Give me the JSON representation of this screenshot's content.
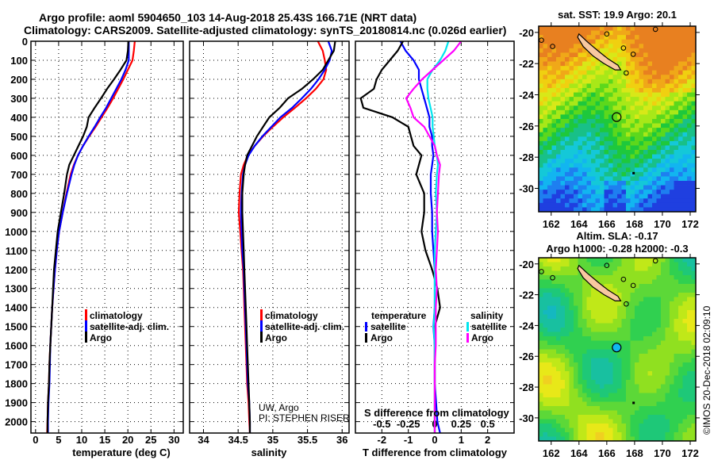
{
  "header": {
    "line1": "Argo profile: aoml 5904650_103 14-Aug-2018 25.43S 166.71E (NRT data)",
    "line2": "Climatology: CARS2009. Satellite-adjusted climatology: synTS_20180814.nc (0.026d earlier)"
  },
  "colors": {
    "climatology": "#ff0000",
    "satellite": "#0000ff",
    "argo": "#000000",
    "s_satellite": "#00e5ee",
    "s_argo": "#ff00ff"
  },
  "chart_data": [
    {
      "type": "line",
      "name": "temperature-profile",
      "xlabel": "temperature (deg C)",
      "ylabel": "",
      "xlim": [
        -1,
        32
      ],
      "ylim": [
        2060,
        0
      ],
      "xticks": [
        0,
        5,
        10,
        15,
        20,
        25,
        30
      ],
      "yticks": [
        0,
        100,
        200,
        300,
        400,
        500,
        600,
        700,
        800,
        900,
        1000,
        1100,
        1200,
        1300,
        1400,
        1500,
        1600,
        1700,
        1800,
        1900,
        2000
      ],
      "grid": true,
      "legend": {
        "position": "center-right",
        "entries": [
          "climatology",
          "satellite-adj. clim.",
          "Argo"
        ]
      },
      "depth": [
        0,
        50,
        100,
        150,
        200,
        250,
        300,
        350,
        400,
        450,
        500,
        550,
        600,
        650,
        700,
        800,
        900,
        1000,
        1100,
        1200,
        1300,
        1400,
        1500,
        1600,
        1700,
        1800,
        1900,
        2000,
        2060
      ],
      "series": [
        {
          "name": "climatology",
          "color_key": "climatology",
          "values": [
            21.5,
            21.3,
            21.0,
            20.0,
            19.0,
            17.9,
            16.8,
            15.6,
            14.3,
            13.0,
            11.6,
            10.3,
            9.2,
            8.3,
            7.6,
            6.7,
            5.9,
            5.1,
            4.6,
            4.2,
            3.9,
            3.6,
            3.4,
            3.2,
            3.0,
            2.9,
            2.7,
            2.6,
            2.5
          ]
        },
        {
          "name": "satellite-adj. clim.",
          "color_key": "satellite",
          "values": [
            20.2,
            20.2,
            20.2,
            19.5,
            18.6,
            17.5,
            16.4,
            15.3,
            14.0,
            12.8,
            11.5,
            10.3,
            9.2,
            8.4,
            7.8,
            6.8,
            5.9,
            5.1,
            4.6,
            4.2,
            3.9,
            3.6,
            3.4,
            3.2,
            3.1,
            3.0,
            2.8,
            2.7,
            2.7
          ]
        },
        {
          "name": "Argo",
          "color_key": "argo",
          "values": [
            20.1,
            20.0,
            19.7,
            18.4,
            17.0,
            15.5,
            14.2,
            12.8,
            11.5,
            11.1,
            10.3,
            9.3,
            8.3,
            7.3,
            6.8,
            6.2,
            5.5,
            4.8,
            4.4,
            4.0,
            3.8,
            3.6,
            3.4,
            3.2,
            3.0,
            2.9,
            2.7,
            2.6,
            2.6
          ]
        }
      ]
    },
    {
      "type": "line",
      "name": "salinity-profile",
      "xlabel": "salinity",
      "ylabel": "",
      "xlim": [
        33.8,
        36.1
      ],
      "ylim": [
        2060,
        0
      ],
      "xticks": [
        34,
        34.5,
        35,
        35.5,
        36
      ],
      "xtick_labels": [
        "34",
        "34.5",
        "35",
        "35.5",
        "36"
      ],
      "grid": true,
      "legend": {
        "position": "center-right",
        "entries": [
          "climatology",
          "satellite-adj. clim.",
          "Argo"
        ]
      },
      "annotation": [
        "UW, Argo",
        "PI: STEPHEN RISER"
      ],
      "depth": [
        0,
        50,
        100,
        150,
        200,
        250,
        300,
        350,
        400,
        450,
        500,
        550,
        600,
        650,
        700,
        800,
        900,
        1000,
        1100,
        1200,
        1300,
        1400,
        1500,
        1600,
        1700,
        1800,
        1900,
        2000,
        2060
      ],
      "series": [
        {
          "name": "climatology",
          "color_key": "climatology",
          "values": [
            35.65,
            35.72,
            35.75,
            35.77,
            35.73,
            35.62,
            35.48,
            35.32,
            35.15,
            35.0,
            34.86,
            34.74,
            34.64,
            34.58,
            34.54,
            34.52,
            34.51,
            34.53,
            34.55,
            34.57,
            34.58,
            34.59,
            34.6,
            34.61,
            34.62,
            34.63,
            34.65,
            34.66,
            34.67
          ]
        },
        {
          "name": "satellite-adj. clim.",
          "color_key": "satellite",
          "values": [
            35.8,
            35.85,
            35.82,
            35.75,
            35.66,
            35.55,
            35.42,
            35.28,
            35.11,
            34.98,
            34.85,
            34.74,
            34.65,
            34.6,
            34.57,
            34.55,
            34.54,
            34.55,
            34.56,
            34.58,
            34.59,
            34.6,
            34.61,
            34.62,
            34.63,
            34.64,
            34.66,
            34.67,
            34.67
          ]
        },
        {
          "name": "Argo",
          "color_key": "argo",
          "values": [
            35.9,
            35.88,
            35.8,
            35.72,
            35.58,
            35.42,
            35.22,
            35.1,
            34.95,
            34.86,
            34.77,
            34.7,
            34.63,
            34.6,
            34.58,
            34.56,
            34.56,
            34.57,
            34.58,
            34.59,
            34.6,
            34.61,
            34.62,
            34.63,
            34.64,
            34.65,
            34.66,
            34.67,
            34.67
          ]
        }
      ]
    },
    {
      "type": "line",
      "name": "difference-profile",
      "xlabel": "T difference from climatology",
      "xlabel2": "S difference from climatology",
      "xlim": [
        -3,
        3
      ],
      "ylim": [
        2060,
        0
      ],
      "xticks": [
        -2,
        -1,
        0,
        1,
        2
      ],
      "xticks2": [
        -0.5,
        -0.25,
        0,
        0.25,
        0.5
      ],
      "xtick2_labels": [
        "-0.5",
        "-0.25",
        "0",
        "0.25",
        "0.5"
      ],
      "grid": true,
      "legend": {
        "position": "bottom-center",
        "groups": [
          {
            "title": "temperature",
            "entries": [
              "satellite",
              "Argo"
            ]
          },
          {
            "title": "salinity",
            "entries": [
              "satellite",
              "Argo"
            ]
          }
        ]
      },
      "depth": [
        0,
        50,
        100,
        150,
        200,
        250,
        300,
        350,
        400,
        450,
        500,
        550,
        600,
        650,
        700,
        800,
        900,
        1000,
        1100,
        1200,
        1300,
        1400,
        1500,
        1600,
        1700,
        1800,
        1900,
        2000,
        2060
      ],
      "series": [
        {
          "name": "T satellite",
          "color_key": "satellite",
          "values": [
            -1.3,
            -1.1,
            -0.8,
            -0.6,
            -0.6,
            -0.5,
            -0.4,
            -0.3,
            -0.2,
            -0.2,
            -0.1,
            -0.1,
            -0.05,
            -0.1,
            -0.15,
            -0.15,
            -0.1,
            -0.1,
            -0.05,
            0,
            0,
            0,
            -0.05,
            0,
            0,
            0,
            0.05,
            0.1,
            0.2
          ]
        },
        {
          "name": "T Argo",
          "color_key": "argo",
          "values": [
            -1.2,
            -1.4,
            -1.7,
            -2.0,
            -2.2,
            -2.3,
            -2.8,
            -2.7,
            -1.6,
            -1.0,
            -0.9,
            -0.8,
            -0.5,
            -0.6,
            -0.7,
            -0.4,
            -0.4,
            -0.5,
            -0.35,
            -0.1,
            0.1,
            0.2,
            0.0,
            0.0,
            0.0,
            0.0,
            0.0,
            0.0,
            0.0
          ]
        },
        {
          "name": "S satellite",
          "color_key": "s_satellite",
          "values": [
            0.13,
            0.1,
            0.05,
            -0.02,
            -0.07,
            -0.07,
            -0.06,
            -0.04,
            -0.02,
            -0.02,
            -0.01,
            0.0,
            0.02,
            0.03,
            0.02,
            0.01,
            0.02,
            0.01,
            0.0,
            0.0,
            0.0,
            0.0,
            -0.01,
            0.0,
            0.0,
            0.0,
            0.0,
            0.0,
            0.0
          ]
        },
        {
          "name": "S Argo",
          "color_key": "s_argo",
          "values": [
            0.25,
            0.18,
            0.08,
            -0.02,
            -0.12,
            -0.2,
            -0.27,
            -0.23,
            -0.2,
            -0.1,
            -0.05,
            0.0,
            0.02,
            0.05,
            0.04,
            0.03,
            0.02,
            0.03,
            0.02,
            0.01,
            0.02,
            0.01,
            0.01,
            0.01,
            0.0,
            0.0,
            0.0,
            0.0,
            0.0
          ]
        }
      ]
    },
    {
      "type": "heatmap",
      "name": "sst-map",
      "title": "sat. SST: 19.9 Argo: 20.1",
      "xticks": [
        162,
        164,
        166,
        168,
        170,
        172
      ],
      "yticks": [
        -20,
        -22,
        -24,
        -26,
        -28,
        -30
      ],
      "xlim": [
        161.1,
        172.4
      ],
      "ylim": [
        -31.5,
        -19.6
      ],
      "float_position": {
        "lon": 166.71,
        "lat": -25.43
      }
    },
    {
      "type": "heatmap",
      "name": "sla-map",
      "title": "Altim. SLA: -0.17",
      "subtitle": "Argo h1000: -0.28 h2000: -0.3",
      "xticks": [
        162,
        164,
        166,
        168,
        170,
        172
      ],
      "yticks": [
        -20,
        -22,
        -24,
        -26,
        -28,
        -30
      ],
      "xlim": [
        161.1,
        172.4
      ],
      "ylim": [
        -31.5,
        -19.6
      ],
      "float_position": {
        "lon": 166.71,
        "lat": -25.43
      }
    }
  ],
  "footer": {
    "copyright": "©IMOS 20-Dec-2018 02:09:10"
  },
  "legend_labels": {
    "climatology": "climatology",
    "satellite_adj": "satellite-adj. clim.",
    "argo": "Argo",
    "temperature": "temperature",
    "salinity": "salinity",
    "satellite": "satellite"
  }
}
